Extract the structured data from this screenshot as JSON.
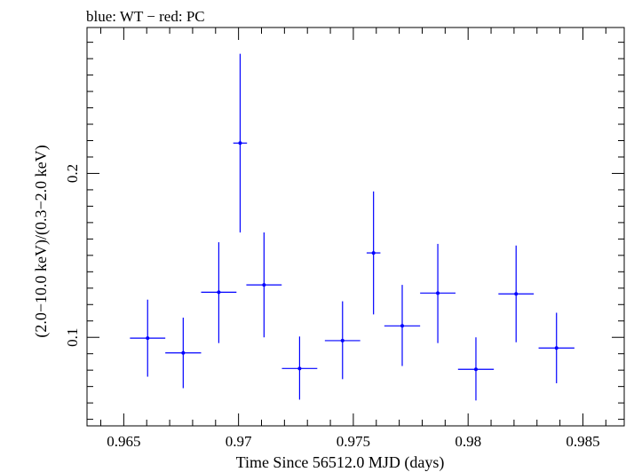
{
  "chart_data": {
    "type": "scatter",
    "title": "blue: WT − red: PC",
    "xlabel": "Time Since 56512.0 MJD (days)",
    "ylabel": "(2.0−10.0 keV)/(0.3−2.0 keV)",
    "xlim": [
      0.9634,
      0.9868
    ],
    "ylim": [
      0.046,
      0.289
    ],
    "x_ticks": [
      0.965,
      0.97,
      0.975,
      0.98,
      0.985
    ],
    "x_tick_labels": [
      "0.965",
      "0.97",
      "0.975",
      "0.98",
      "0.985"
    ],
    "y_ticks": [
      0.1,
      0.2
    ],
    "y_tick_labels": [
      "0.1",
      "0.2"
    ],
    "grid": false,
    "series": [
      {
        "color": "#0000ff",
        "points": [
          {
            "x": 0.96604,
            "xerr": 0.00077,
            "y": 0.0995,
            "yerr_low": 0.0235,
            "yerr_high": 0.0235
          },
          {
            "x": 0.96759,
            "xerr": 0.00078,
            "y": 0.0905,
            "yerr_low": 0.0215,
            "yerr_high": 0.0215
          },
          {
            "x": 0.96914,
            "xerr": 0.00077,
            "y": 0.1275,
            "yerr_low": 0.031,
            "yerr_high": 0.0305
          },
          {
            "x": 0.97007,
            "xerr": 0.0003,
            "y": 0.2185,
            "yerr_low": 0.0545,
            "yerr_high": 0.0545
          },
          {
            "x": 0.97111,
            "xerr": 0.00077,
            "y": 0.132,
            "yerr_low": 0.032,
            "yerr_high": 0.032
          },
          {
            "x": 0.97266,
            "xerr": 0.00077,
            "y": 0.081,
            "yerr_low": 0.019,
            "yerr_high": 0.0195
          },
          {
            "x": 0.97453,
            "xerr": 0.00077,
            "y": 0.098,
            "yerr_low": 0.0235,
            "yerr_high": 0.024
          },
          {
            "x": 0.97588,
            "xerr": 0.0003,
            "y": 0.1515,
            "yerr_low": 0.0375,
            "yerr_high": 0.0375
          },
          {
            "x": 0.97713,
            "xerr": 0.00078,
            "y": 0.107,
            "yerr_low": 0.0245,
            "yerr_high": 0.025
          },
          {
            "x": 0.97868,
            "xerr": 0.00077,
            "y": 0.127,
            "yerr_low": 0.0305,
            "yerr_high": 0.03
          },
          {
            "x": 0.98034,
            "xerr": 0.00078,
            "y": 0.0805,
            "yerr_low": 0.019,
            "yerr_high": 0.0195
          },
          {
            "x": 0.98209,
            "xerr": 0.00077,
            "y": 0.1265,
            "yerr_low": 0.0295,
            "yerr_high": 0.0295
          },
          {
            "x": 0.98385,
            "xerr": 0.00078,
            "y": 0.0935,
            "yerr_low": 0.0215,
            "yerr_high": 0.0215
          }
        ]
      }
    ]
  }
}
